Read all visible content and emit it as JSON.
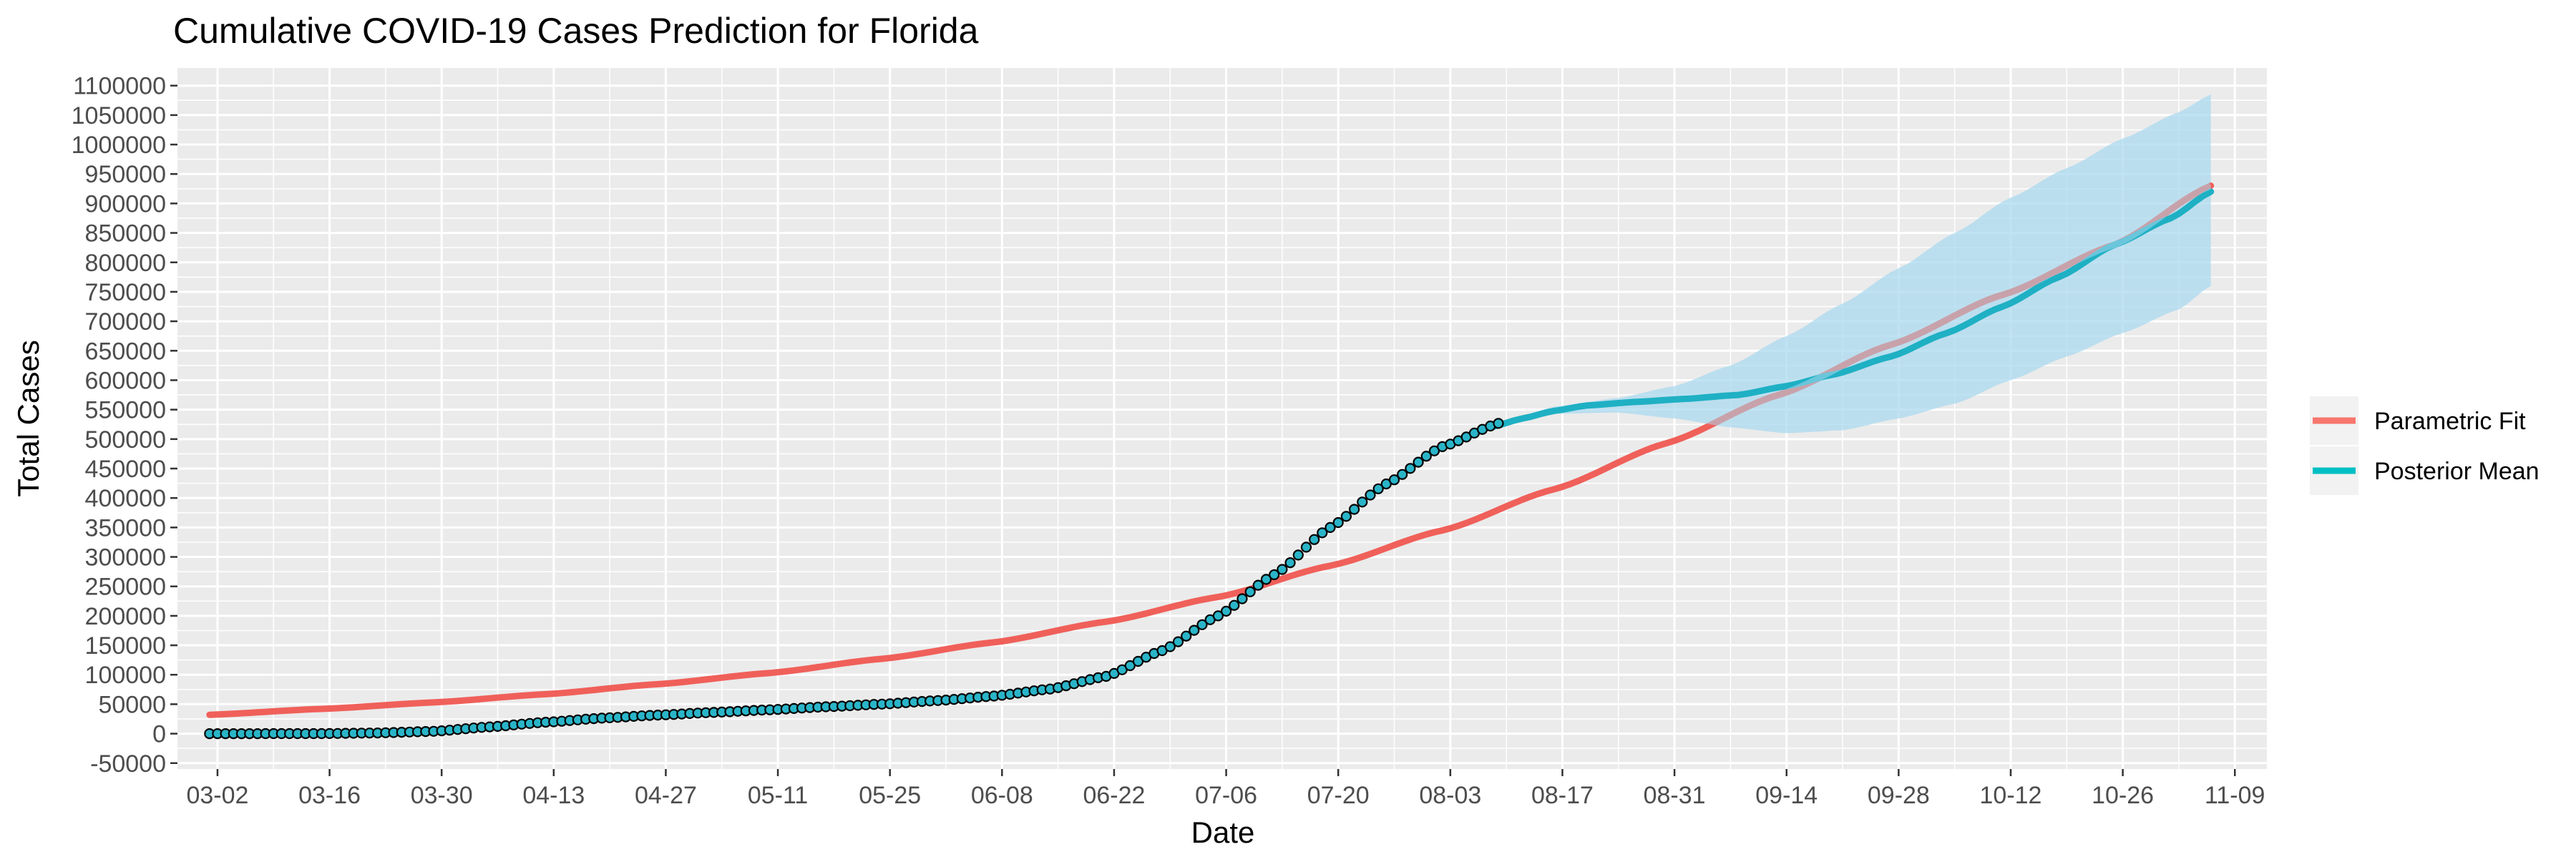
{
  "chart_data": {
    "type": "line",
    "title": "Cumulative COVID-19 Cases Prediction for Florida",
    "xlabel": "Date",
    "ylabel": "Total Cases",
    "x_type": "date",
    "year": 2020,
    "xlim": [
      "2020-02-26",
      "2020-11-13"
    ],
    "ylim": [
      -60000,
      1130000
    ],
    "x_ticks": [
      {
        "date": "2020-03-02",
        "label": "03-02"
      },
      {
        "date": "2020-03-16",
        "label": "03-16"
      },
      {
        "date": "2020-03-30",
        "label": "03-30"
      },
      {
        "date": "2020-04-13",
        "label": "04-13"
      },
      {
        "date": "2020-04-27",
        "label": "04-27"
      },
      {
        "date": "2020-05-11",
        "label": "05-11"
      },
      {
        "date": "2020-05-25",
        "label": "05-25"
      },
      {
        "date": "2020-06-08",
        "label": "06-08"
      },
      {
        "date": "2020-06-22",
        "label": "06-22"
      },
      {
        "date": "2020-07-06",
        "label": "07-06"
      },
      {
        "date": "2020-07-20",
        "label": "07-20"
      },
      {
        "date": "2020-08-03",
        "label": "08-03"
      },
      {
        "date": "2020-08-17",
        "label": "08-17"
      },
      {
        "date": "2020-08-31",
        "label": "08-31"
      },
      {
        "date": "2020-09-14",
        "label": "09-14"
      },
      {
        "date": "2020-09-28",
        "label": "09-28"
      },
      {
        "date": "2020-10-12",
        "label": "10-12"
      },
      {
        "date": "2020-10-26",
        "label": "10-26"
      },
      {
        "date": "2020-11-09",
        "label": "11-09"
      }
    ],
    "y_ticks": [
      -50000,
      0,
      50000,
      100000,
      150000,
      200000,
      250000,
      300000,
      350000,
      400000,
      450000,
      500000,
      550000,
      600000,
      650000,
      700000,
      750000,
      800000,
      850000,
      900000,
      950000,
      1000000,
      1050000,
      1100000
    ],
    "y_tick_labels": [
      "-50000",
      "0",
      "50000",
      "100000",
      "150000",
      "200000",
      "250000",
      "300000",
      "350000",
      "400000",
      "450000",
      "500000",
      "550000",
      "600000",
      "650000",
      "700000",
      "750000",
      "800000",
      "850000",
      "900000",
      "950000",
      "1000000",
      "1050000",
      "1100000"
    ],
    "grid": true,
    "legend_position": "right",
    "legend": [
      {
        "label": "Parametric Fit",
        "color": "#F8766D"
      },
      {
        "label": "Posterior Mean",
        "color": "#00BFC4"
      }
    ],
    "colors": {
      "parametric": "#F0605A",
      "posterior": "#1FB0C4",
      "band": "#A8D8EE",
      "panel": "#EBEBEB",
      "grid": "#FFFFFF",
      "points_fill": "#2AB4C8"
    },
    "observed": {
      "start": "2020-03-01",
      "end": "2020-08-09",
      "anchors": [
        [
          "2020-03-01",
          0
        ],
        [
          "2020-03-15",
          100
        ],
        [
          "2020-03-22",
          1200
        ],
        [
          "2020-03-29",
          4000
        ],
        [
          "2020-04-05",
          11500
        ],
        [
          "2020-04-12",
          19400
        ],
        [
          "2020-04-19",
          26300
        ],
        [
          "2020-04-26",
          31500
        ],
        [
          "2020-05-03",
          36100
        ],
        [
          "2020-05-10",
          40600
        ],
        [
          "2020-05-17",
          45600
        ],
        [
          "2020-05-24",
          50100
        ],
        [
          "2020-05-31",
          56200
        ],
        [
          "2020-06-07",
          63800
        ],
        [
          "2020-06-14",
          75800
        ],
        [
          "2020-06-21",
          97300
        ],
        [
          "2020-06-28",
          141000
        ],
        [
          "2020-07-05",
          200000
        ],
        [
          "2020-07-12",
          269800
        ],
        [
          "2020-07-19",
          350000
        ],
        [
          "2020-07-26",
          423900
        ],
        [
          "2020-08-02",
          487100
        ],
        [
          "2020-08-09",
          526700
        ]
      ]
    },
    "series": [
      {
        "name": "Parametric Fit",
        "points": [
          [
            "2020-03-01",
            32000
          ],
          [
            "2020-03-15",
            42000
          ],
          [
            "2020-03-29",
            53000
          ],
          [
            "2020-04-12",
            67000
          ],
          [
            "2020-04-26",
            84000
          ],
          [
            "2020-05-10",
            103000
          ],
          [
            "2020-05-24",
            127000
          ],
          [
            "2020-06-07",
            155000
          ],
          [
            "2020-06-21",
            190000
          ],
          [
            "2020-07-05",
            232000
          ],
          [
            "2020-07-19",
            285000
          ],
          [
            "2020-08-02",
            345000
          ],
          [
            "2020-08-16",
            415000
          ],
          [
            "2020-08-30",
            493000
          ],
          [
            "2020-09-13",
            575000
          ],
          [
            "2020-09-27",
            660000
          ],
          [
            "2020-10-11",
            745000
          ],
          [
            "2020-10-25",
            830000
          ],
          [
            "2020-11-06",
            930000
          ]
        ]
      },
      {
        "name": "Posterior Mean",
        "points": [
          [
            "2020-08-08",
            520000
          ],
          [
            "2020-08-12",
            535000
          ],
          [
            "2020-08-16",
            548000
          ],
          [
            "2020-08-20",
            557000
          ],
          [
            "2020-08-26",
            563000
          ],
          [
            "2020-09-01",
            568000
          ],
          [
            "2020-09-08",
            575000
          ],
          [
            "2020-09-14",
            590000
          ],
          [
            "2020-09-20",
            610000
          ],
          [
            "2020-09-27",
            640000
          ],
          [
            "2020-10-04",
            680000
          ],
          [
            "2020-10-11",
            725000
          ],
          [
            "2020-10-18",
            775000
          ],
          [
            "2020-10-25",
            830000
          ],
          [
            "2020-11-01",
            875000
          ],
          [
            "2020-11-06",
            920000
          ]
        ],
        "lower": [
          [
            "2020-08-08",
            520000
          ],
          [
            "2020-08-16",
            543000
          ],
          [
            "2020-08-24",
            545000
          ],
          [
            "2020-08-31",
            535000
          ],
          [
            "2020-09-07",
            520000
          ],
          [
            "2020-09-14",
            510000
          ],
          [
            "2020-09-21",
            515000
          ],
          [
            "2020-09-28",
            535000
          ],
          [
            "2020-10-05",
            560000
          ],
          [
            "2020-10-12",
            600000
          ],
          [
            "2020-10-19",
            640000
          ],
          [
            "2020-10-26",
            680000
          ],
          [
            "2020-11-02",
            720000
          ],
          [
            "2020-11-06",
            760000
          ]
        ],
        "upper": [
          [
            "2020-08-08",
            520000
          ],
          [
            "2020-08-16",
            555000
          ],
          [
            "2020-08-24",
            570000
          ],
          [
            "2020-08-31",
            590000
          ],
          [
            "2020-09-07",
            625000
          ],
          [
            "2020-09-14",
            675000
          ],
          [
            "2020-09-21",
            730000
          ],
          [
            "2020-09-28",
            790000
          ],
          [
            "2020-10-05",
            850000
          ],
          [
            "2020-10-12",
            910000
          ],
          [
            "2020-10-19",
            960000
          ],
          [
            "2020-10-26",
            1010000
          ],
          [
            "2020-11-02",
            1055000
          ],
          [
            "2020-11-06",
            1085000
          ]
        ]
      }
    ]
  }
}
